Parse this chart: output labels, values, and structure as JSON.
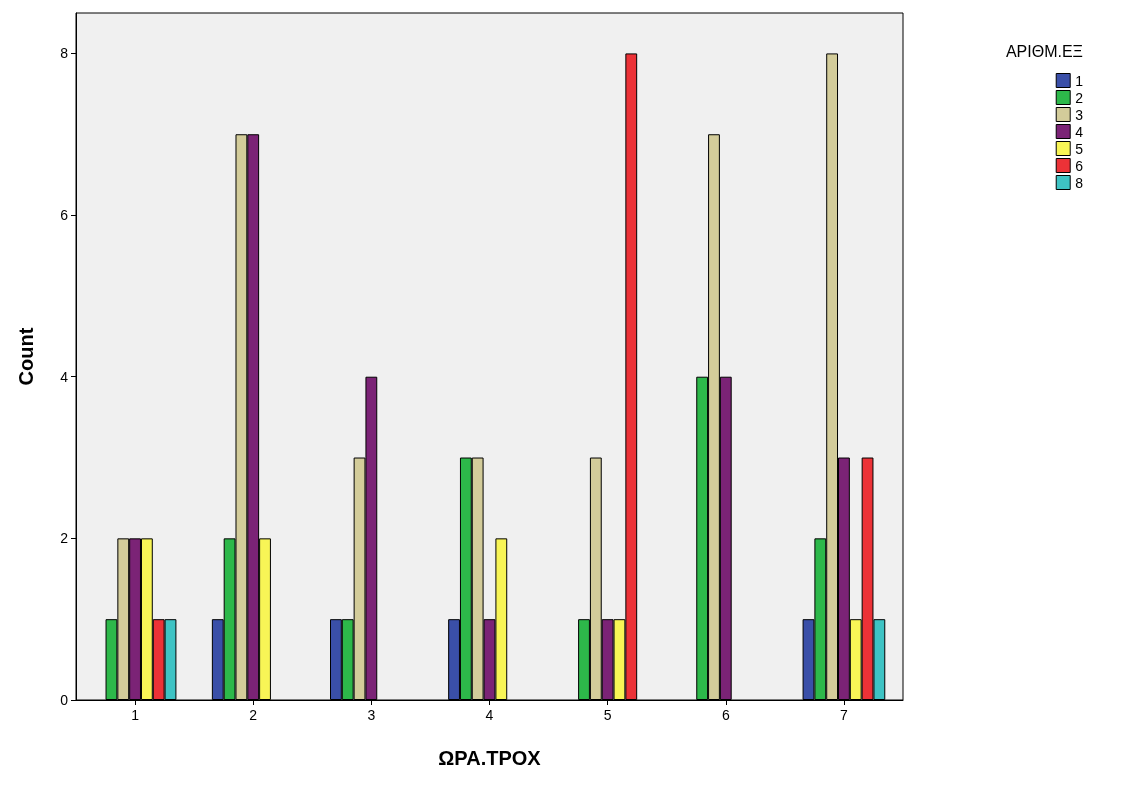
{
  "chart_data": {
    "type": "bar",
    "xlabel": "ΩΡΑ.ΤΡΟΧ",
    "ylabel": "Count",
    "legend_title": "ΑΡΙΘΜ.ΕΞ",
    "categories": [
      "1",
      "2",
      "3",
      "4",
      "5",
      "6",
      "7"
    ],
    "series": [
      {
        "name": "1",
        "color": "#3a4fa8",
        "values": [
          null,
          1,
          1,
          1,
          null,
          null,
          1
        ]
      },
      {
        "name": "2",
        "color": "#2db84a",
        "values": [
          1,
          2,
          1,
          3,
          1,
          4,
          2
        ]
      },
      {
        "name": "3",
        "color": "#d3cc9a",
        "values": [
          2,
          7,
          3,
          3,
          3,
          7,
          8
        ]
      },
      {
        "name": "4",
        "color": "#7b2376",
        "values": [
          2,
          7,
          4,
          1,
          1,
          4,
          3
        ]
      },
      {
        "name": "5",
        "color": "#f8f556",
        "values": [
          2,
          2,
          null,
          2,
          1,
          null,
          1
        ]
      },
      {
        "name": "6",
        "color": "#ec3237",
        "values": [
          1,
          null,
          null,
          null,
          8,
          null,
          3
        ]
      },
      {
        "name": "8",
        "color": "#3ec3c4",
        "values": [
          1,
          null,
          null,
          null,
          null,
          null,
          1
        ]
      }
    ],
    "ylim": [
      0,
      8.5
    ],
    "yticks": [
      0,
      2,
      4,
      6,
      8
    ],
    "grid": false,
    "legend": "top right"
  }
}
